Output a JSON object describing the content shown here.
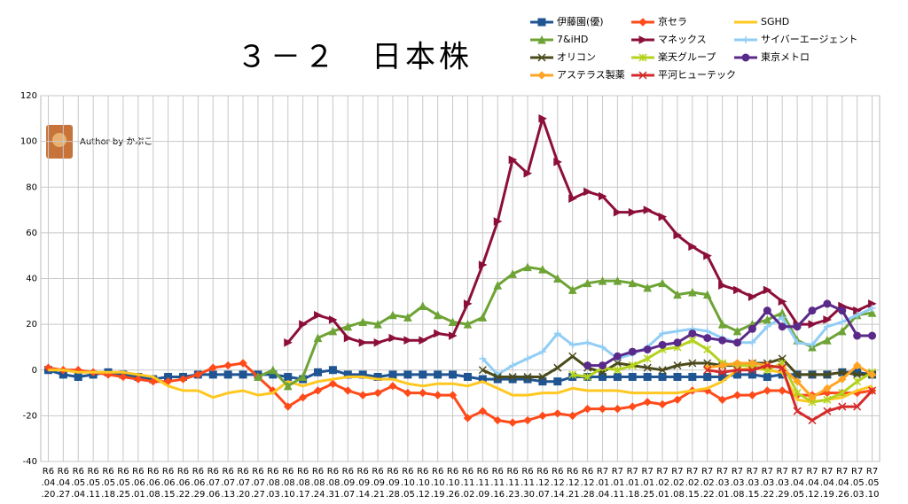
{
  "chart_data": {
    "type": "line",
    "title": "３－２　日本株",
    "annotation": "Author by かぷこ",
    "categories": [
      "R6.04.20",
      "R6.04.27",
      "R6.05.04",
      "R6.05.11",
      "R6.05.18",
      "R6.05.25",
      "R6.06.01",
      "R6.06.08",
      "R6.06.15",
      "R6.06.22",
      "R6.06.29",
      "R6.07.06",
      "R6.07.13",
      "R6.07.20",
      "R6.07.27",
      "R6.08.03",
      "R6.08.10",
      "R6.08.17",
      "R6.08.24",
      "R6.08.31",
      "R6.09.07",
      "R6.09.14",
      "R6.09.21",
      "R6.09.28",
      "R6.10.05",
      "R6.10.12",
      "R6.10.19",
      "R6.10.26",
      "R6.11.02",
      "R6.11.09",
      "R6.11.16",
      "R6.11.23",
      "R6.11.30",
      "R6.12.07",
      "R6.12.14",
      "R6.12.21",
      "R6.12.28",
      "R7.01.04",
      "R7.01.11",
      "R7.01.18",
      "R7.01.25",
      "R7.02.01",
      "R7.02.08",
      "R7.02.15",
      "R7.02.22",
      "R7.03.01",
      "R7.03.08",
      "R7.03.15",
      "R7.03.22",
      "R7.03.29",
      "R7.04.05",
      "R7.04.12",
      "R7.04.19",
      "R7.04.26",
      "R7.05.03",
      "R7.05.10"
    ],
    "ylim": [
      -40,
      120
    ],
    "yticks": [
      -40,
      -20,
      0,
      20,
      40,
      60,
      80,
      100,
      120
    ],
    "grid": true,
    "series": [
      {
        "name": "伊藤園(優)",
        "color": "#1f5592",
        "marker": "square",
        "values": [
          0,
          -2,
          -3,
          -2,
          -1,
          -2,
          -3,
          -4,
          -3,
          -3,
          -2,
          -2,
          -2,
          -2,
          -2,
          -2,
          -3,
          -4,
          -1,
          0,
          -2,
          -2,
          -3,
          -2,
          -2,
          -2,
          -2,
          -2,
          -3,
          -4,
          -4,
          -4,
          -4,
          -5,
          -5,
          -3,
          -3,
          -3,
          -3,
          -3,
          -3,
          -3,
          -3,
          -3,
          -3,
          -3,
          -2,
          -2,
          -3,
          -2,
          -2,
          -2,
          -2,
          -1,
          -1,
          -2
        ]
      },
      {
        "name": "京セラ",
        "color": "#ff4a1a",
        "marker": "diamond",
        "values": [
          1,
          0,
          0,
          -1,
          -2,
          -3,
          -4,
          -5,
          -5,
          -4,
          -2,
          1,
          2,
          3,
          -3,
          -9,
          -16,
          -12,
          -9,
          -6,
          -9,
          -11,
          -10,
          -7,
          -10,
          -10,
          -11,
          -11,
          -21,
          -18,
          -22,
          -23,
          -22,
          -20,
          -19,
          -20,
          -17,
          -17,
          -17,
          -16,
          -14,
          -15,
          -13,
          -9,
          -9,
          -13,
          -11,
          -11,
          -9,
          -9,
          -11,
          -11,
          -10,
          -10,
          -10,
          -9
        ]
      },
      {
        "name": "SGHD",
        "color": "#ffc820",
        "marker": "none",
        "values": [
          0,
          0,
          -1,
          -1,
          -1,
          -1,
          -2,
          -3,
          -7,
          -9,
          -9,
          -12,
          -10,
          -9,
          -11,
          -10,
          -5,
          -7,
          -5,
          -4,
          -3,
          -3,
          -4,
          -4,
          -6,
          -7,
          -6,
          -6,
          -7,
          -5,
          -8,
          -11,
          -11,
          -10,
          -10,
          -8,
          -9,
          -9,
          -9,
          -10,
          -10,
          -10,
          -10,
          -9,
          -8,
          -5,
          0,
          1,
          0,
          -1,
          -13,
          -14,
          -13,
          -12,
          -9,
          -7
        ]
      },
      {
        "name": "7&iHD",
        "color": "#6ea336",
        "marker": "triangle",
        "values": [
          null,
          null,
          null,
          null,
          null,
          null,
          null,
          null,
          null,
          null,
          null,
          null,
          null,
          null,
          -3,
          0,
          -7,
          -3,
          14,
          17,
          19,
          21,
          20,
          24,
          23,
          28,
          24,
          21,
          20,
          23,
          37,
          42,
          45,
          44,
          40,
          35,
          38,
          39,
          39,
          38,
          36,
          38,
          33,
          34,
          33,
          20,
          17,
          20,
          22,
          25,
          13,
          10,
          13,
          17,
          24,
          25
        ]
      },
      {
        "name": "マネックス",
        "color": "#8c0f3a",
        "marker": "arrow",
        "values": [
          null,
          null,
          null,
          null,
          null,
          null,
          null,
          null,
          null,
          null,
          null,
          null,
          null,
          null,
          null,
          null,
          12,
          20,
          24,
          22,
          14,
          12,
          12,
          14,
          13,
          13,
          16,
          15,
          29,
          46,
          65,
          92,
          86,
          110,
          91,
          75,
          78,
          76,
          69,
          69,
          70,
          67,
          59,
          54,
          50,
          37,
          35,
          32,
          35,
          30,
          20,
          20,
          22,
          28,
          26,
          29
        ]
      },
      {
        "name": "サイバーエージェント",
        "color": "#92cdf5",
        "marker": "plus",
        "values": [
          null,
          null,
          null,
          null,
          null,
          null,
          null,
          null,
          null,
          null,
          null,
          null,
          null,
          null,
          null,
          null,
          null,
          null,
          null,
          null,
          null,
          null,
          null,
          null,
          null,
          null,
          null,
          null,
          null,
          5,
          -2,
          2,
          5,
          8,
          16,
          11,
          12,
          10,
          5,
          7,
          10,
          16,
          17,
          18,
          17,
          14,
          12,
          12,
          19,
          23,
          12,
          11,
          19,
          21,
          24,
          27
        ]
      },
      {
        "name": "オリコン",
        "color": "#4a4a1c",
        "marker": "x",
        "values": [
          null,
          null,
          null,
          null,
          null,
          null,
          null,
          null,
          null,
          null,
          null,
          null,
          null,
          null,
          null,
          null,
          null,
          null,
          null,
          null,
          null,
          null,
          null,
          null,
          null,
          null,
          null,
          null,
          null,
          0,
          -3,
          -3,
          -3,
          -3,
          1,
          6,
          1,
          -1,
          3,
          2,
          1,
          0,
          2,
          3,
          3,
          2,
          2,
          3,
          3,
          5,
          -2,
          -2,
          -2,
          -1,
          -2,
          -2
        ]
      },
      {
        "name": "楽天グループ",
        "color": "#b4d21e",
        "marker": "star",
        "values": [
          null,
          null,
          null,
          null,
          null,
          null,
          null,
          null,
          null,
          null,
          null,
          null,
          null,
          null,
          null,
          null,
          null,
          null,
          null,
          null,
          null,
          null,
          null,
          null,
          null,
          null,
          null,
          null,
          null,
          null,
          null,
          null,
          null,
          null,
          null,
          -2,
          -3,
          1,
          0,
          2,
          5,
          9,
          10,
          13,
          9,
          3,
          2,
          2,
          0,
          3,
          -10,
          -14,
          -13,
          -10,
          -5,
          -1
        ]
      },
      {
        "name": "東京メトロ",
        "color": "#5a2a8a",
        "marker": "circle",
        "values": [
          null,
          null,
          null,
          null,
          null,
          null,
          null,
          null,
          null,
          null,
          null,
          null,
          null,
          null,
          null,
          null,
          null,
          null,
          null,
          null,
          null,
          null,
          null,
          null,
          null,
          null,
          null,
          null,
          null,
          null,
          null,
          null,
          null,
          null,
          null,
          null,
          2,
          2,
          6,
          8,
          9,
          11,
          12,
          16,
          14,
          13,
          12,
          18,
          26,
          19,
          19,
          26,
          29,
          26,
          15,
          15
        ]
      },
      {
        "name": "アステラス製薬",
        "color": "#ffa424",
        "marker": "diamond",
        "values": [
          null,
          null,
          null,
          null,
          null,
          null,
          null,
          null,
          null,
          null,
          null,
          null,
          null,
          null,
          null,
          null,
          null,
          null,
          null,
          null,
          null,
          null,
          null,
          null,
          null,
          null,
          null,
          null,
          null,
          null,
          null,
          null,
          null,
          null,
          null,
          null,
          null,
          null,
          null,
          null,
          null,
          null,
          null,
          null,
          1,
          2,
          3,
          3,
          2,
          1,
          -5,
          -12,
          -8,
          -4,
          2,
          -2
        ]
      },
      {
        "name": "平河ヒューテック",
        "color": "#d42a2a",
        "marker": "x",
        "values": [
          null,
          null,
          null,
          null,
          null,
          null,
          null,
          null,
          null,
          null,
          null,
          null,
          null,
          null,
          null,
          null,
          null,
          null,
          null,
          null,
          null,
          null,
          null,
          null,
          null,
          null,
          null,
          null,
          null,
          null,
          null,
          null,
          null,
          null,
          null,
          null,
          null,
          null,
          null,
          null,
          null,
          null,
          null,
          null,
          0,
          -1,
          0,
          0,
          2,
          1,
          -18,
          -22,
          -18,
          -16,
          -16,
          -9
        ]
      }
    ]
  }
}
